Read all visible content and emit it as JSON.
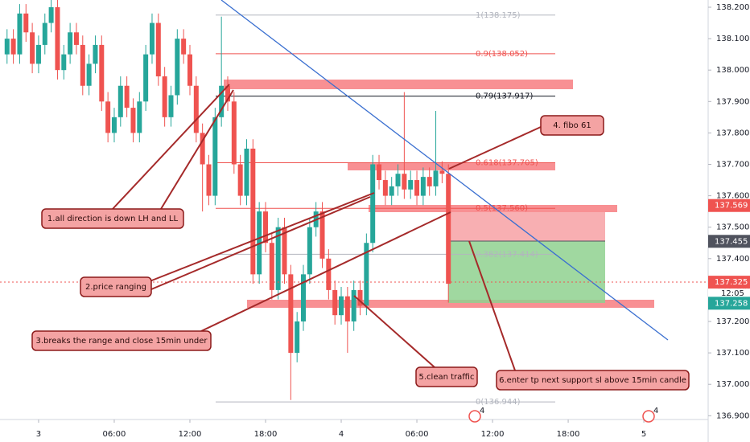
{
  "chart_data": {
    "type": "candlestick",
    "x": [
      -2.5,
      -2,
      -1.5,
      -1,
      -0.5,
      0,
      0.5,
      1,
      1.5,
      2,
      2.5,
      3,
      3.5,
      4,
      4.5,
      5,
      5.5,
      6,
      6.5,
      7,
      7.5,
      8,
      8.5,
      9,
      9.5,
      10,
      10.5,
      11,
      11.5,
      12,
      12.5,
      13,
      13.5,
      14,
      14.5,
      15,
      15.5,
      16,
      16.5,
      17,
      17.5,
      18,
      18.5,
      19,
      19.5,
      20,
      20.5,
      21,
      21.5,
      22,
      22.5,
      23,
      23.5,
      24,
      24.5,
      25,
      25.5,
      26,
      26.5,
      27,
      27.5,
      28,
      28.5,
      29,
      29.5,
      30,
      30.5,
      31,
      31.5,
      32,
      32.5
    ],
    "open": [
      138.05,
      138.1,
      138.05,
      138.18,
      138.12,
      138.02,
      138.08,
      138.15,
      138.2,
      138.0,
      138.05,
      138.12,
      138.08,
      137.95,
      138.02,
      138.08,
      137.9,
      137.8,
      137.85,
      137.95,
      137.88,
      137.8,
      137.9,
      138.05,
      138.15,
      137.98,
      137.85,
      137.92,
      138.1,
      138.05,
      137.95,
      137.8,
      137.7,
      137.6,
      137.85,
      137.95,
      137.9,
      137.7,
      137.6,
      137.75,
      137.35,
      137.55,
      137.45,
      137.3,
      137.5,
      137.35,
      137.1,
      137.2,
      137.35,
      137.5,
      137.55,
      137.4,
      137.3,
      137.22,
      137.28,
      137.2,
      137.3,
      137.25,
      137.45,
      137.7,
      137.65,
      137.6,
      137.63,
      137.67,
      137.62,
      137.65,
      137.6,
      137.66,
      137.63,
      137.68,
      137.67
    ],
    "high": [
      138.13,
      138.13,
      138.21,
      138.21,
      138.15,
      138.11,
      138.18,
      138.23,
      138.23,
      138.08,
      138.15,
      138.15,
      138.11,
      138.05,
      138.11,
      138.11,
      137.93,
      137.88,
      137.98,
      137.98,
      137.91,
      137.93,
      138.08,
      138.18,
      138.18,
      138.01,
      137.95,
      138.13,
      138.13,
      138.08,
      137.98,
      137.83,
      137.73,
      137.88,
      138.17,
      137.98,
      137.93,
      137.73,
      137.78,
      137.78,
      137.58,
      137.58,
      137.48,
      137.53,
      137.53,
      137.38,
      137.23,
      137.38,
      137.53,
      137.58,
      137.58,
      137.43,
      137.33,
      137.31,
      137.31,
      137.33,
      137.33,
      137.48,
      137.73,
      137.73,
      137.68,
      137.66,
      137.7,
      137.93,
      137.68,
      137.68,
      137.69,
      137.69,
      137.87,
      137.71,
      137.7
    ],
    "low": [
      138.02,
      138.02,
      138.02,
      138.09,
      137.99,
      137.99,
      138.05,
      138.12,
      137.97,
      137.97,
      138.02,
      138.05,
      137.92,
      137.92,
      137.99,
      137.87,
      137.77,
      137.77,
      137.82,
      137.85,
      137.77,
      137.77,
      137.87,
      138.02,
      137.95,
      137.82,
      137.82,
      137.89,
      138.02,
      137.92,
      137.77,
      137.55,
      137.57,
      137.57,
      137.82,
      137.87,
      137.67,
      137.57,
      137.57,
      137.32,
      137.32,
      137.42,
      137.27,
      137.27,
      137.32,
      136.95,
      137.07,
      137.17,
      137.32,
      137.47,
      137.37,
      137.27,
      137.19,
      137.19,
      137.1,
      137.17,
      137.22,
      137.22,
      137.42,
      137.62,
      137.57,
      137.57,
      137.6,
      137.59,
      137.59,
      137.57,
      137.57,
      137.6,
      137.6,
      137.64,
      137.26
    ],
    "close": [
      138.1,
      138.05,
      138.18,
      138.12,
      138.02,
      138.08,
      138.15,
      138.2,
      138.0,
      138.05,
      138.12,
      138.08,
      137.95,
      138.02,
      138.08,
      137.9,
      137.8,
      137.85,
      137.95,
      137.88,
      137.8,
      137.9,
      138.05,
      138.15,
      137.98,
      137.85,
      137.92,
      138.1,
      138.05,
      137.95,
      137.8,
      137.7,
      137.6,
      137.85,
      137.95,
      137.9,
      137.7,
      137.6,
      137.75,
      137.35,
      137.55,
      137.45,
      137.3,
      137.5,
      137.35,
      137.1,
      137.2,
      137.35,
      137.5,
      137.55,
      137.4,
      137.3,
      137.22,
      137.28,
      137.2,
      137.3,
      137.25,
      137.45,
      137.7,
      137.65,
      137.6,
      137.63,
      137.67,
      137.62,
      137.65,
      137.6,
      137.66,
      137.63,
      137.68,
      137.67,
      137.32
    ],
    "up_color": "#26a69a",
    "down_color": "#ef5350",
    "xlim": [
      -3.06,
      53.1
    ],
    "xticks": [
      {
        "value": 0,
        "label": "3"
      },
      {
        "value": 6,
        "label": "06:00"
      },
      {
        "value": 12,
        "label": "12:00"
      },
      {
        "value": 18,
        "label": "18:00"
      },
      {
        "value": 24,
        "label": "4"
      },
      {
        "value": 30,
        "label": "06:00"
      },
      {
        "value": 36,
        "label": "12:00"
      },
      {
        "value": 42,
        "label": "18:00"
      },
      {
        "value": 48,
        "label": "5"
      }
    ],
    "ylim": [
      136.888,
      138.223
    ],
    "yticks": [
      {
        "value": 138.2,
        "label": "138.200"
      },
      {
        "value": 138.1,
        "label": "138.100"
      },
      {
        "value": 138.0,
        "label": "138.000"
      },
      {
        "value": 137.9,
        "label": "137.900"
      },
      {
        "value": 137.8,
        "label": "137.800"
      },
      {
        "value": 137.7,
        "label": "137.700"
      },
      {
        "value": 137.6,
        "label": "137.600"
      },
      {
        "value": 137.5,
        "label": "137.500"
      },
      {
        "value": 137.4,
        "label": "137.400"
      },
      {
        "value": 137.3,
        "label": "137.300"
      },
      {
        "value": 137.2,
        "label": "137.200"
      },
      {
        "value": 137.1,
        "label": "137.100"
      },
      {
        "value": 137.0,
        "label": "137.000"
      },
      {
        "value": 136.9,
        "label": "136.900"
      }
    ],
    "fib_levels": [
      {
        "label": "1(138.175)",
        "price": 138.175,
        "color": "#b2b5be"
      },
      {
        "label": "0.9(138.052)",
        "price": 138.052,
        "color": "#ef5350"
      },
      {
        "label": "0.79(137.917)",
        "price": 137.917,
        "color": "#131722"
      },
      {
        "label": "0.618(137.705)",
        "price": 137.705,
        "color": "#ef5350"
      },
      {
        "label": "0.5(137.560)",
        "price": 137.56,
        "color": "#ef5350"
      },
      {
        "label": "0.382(137.414)",
        "price": 137.414,
        "color": "#b2b5be"
      },
      {
        "label": "0(136.944)",
        "price": 136.944,
        "color": "#b2b5be"
      }
    ],
    "price_tags": [
      {
        "value": 137.569,
        "color": "#ef5350"
      },
      {
        "value": 137.455,
        "color": "#50535e"
      },
      {
        "value": 137.325,
        "color": "#ef5350"
      },
      {
        "value": 137.258,
        "color": "#26a69a"
      }
    ],
    "countdown": "12:05",
    "annotations": [
      "1.all direction is down LH and LL",
      "2.price ranging",
      "3.breaks the range and close 15min under",
      "4. fibo 61",
      "5.clean traffic",
      "6.enter tp next support sl above 15min candle"
    ],
    "event_badges": [
      "4",
      "4"
    ]
  }
}
